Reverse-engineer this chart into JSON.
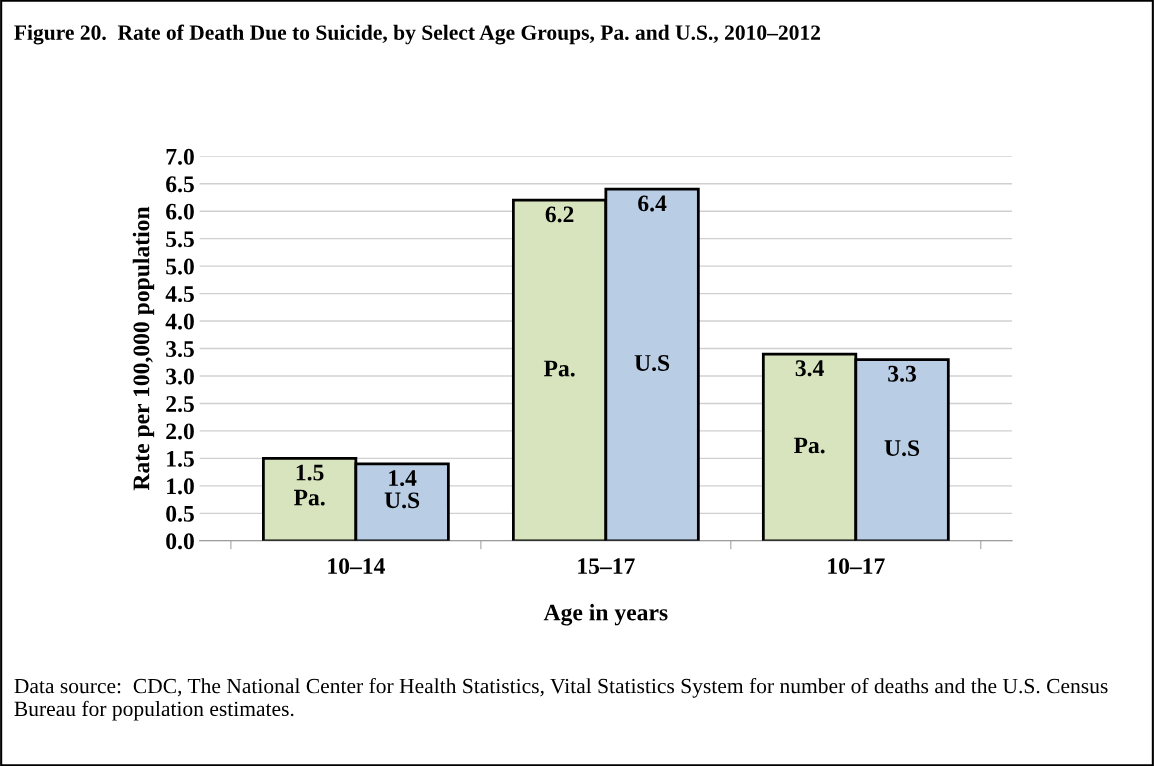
{
  "chart_data": {
    "type": "bar",
    "title": "Figure 20.  Rate of Death Due to Suicide, by Select Age Groups, Pa. and U.S., 2010–2012",
    "xlabel": "Age in years",
    "ylabel": "Rate per 100,000 population",
    "categories": [
      "10–14",
      "15–17",
      "10–17"
    ],
    "series": [
      {
        "name": "Pa.",
        "color": "#d7e4bd",
        "values": [
          1.5,
          6.2,
          3.4
        ]
      },
      {
        "name": "U.S",
        "color": "#b9cde5",
        "values": [
          1.4,
          6.4,
          3.3
        ]
      }
    ],
    "ylim": [
      0,
      7.0
    ],
    "yticks": [
      {
        "value": 0,
        "label": "0.0"
      },
      {
        "value": 0.5,
        "label": "0.5"
      },
      {
        "value": 1,
        "label": "1.0"
      },
      {
        "value": 1.5,
        "label": "1.5"
      },
      {
        "value": 2,
        "label": "2.0"
      },
      {
        "value": 2.5,
        "label": "2.5"
      },
      {
        "value": 3,
        "label": "3.0"
      },
      {
        "value": 3.5,
        "label": "3.5"
      },
      {
        "value": 4,
        "label": "4.0"
      },
      {
        "value": 4.5,
        "label": "4.5"
      },
      {
        "value": 5,
        "label": "5.0"
      },
      {
        "value": 5.5,
        "label": "5.5"
      },
      {
        "value": 6,
        "label": "6.0"
      },
      {
        "value": 6.5,
        "label": "6.5"
      },
      {
        "value": 7,
        "label": "7.0"
      }
    ],
    "grid": "y",
    "data_labels": true,
    "legend": false,
    "annotations": [
      "Data source:  CDC, The National Center for Health Statistics, Vital Statistics System for number of deaths and the U.S. Census Bureau for population estimates."
    ]
  }
}
